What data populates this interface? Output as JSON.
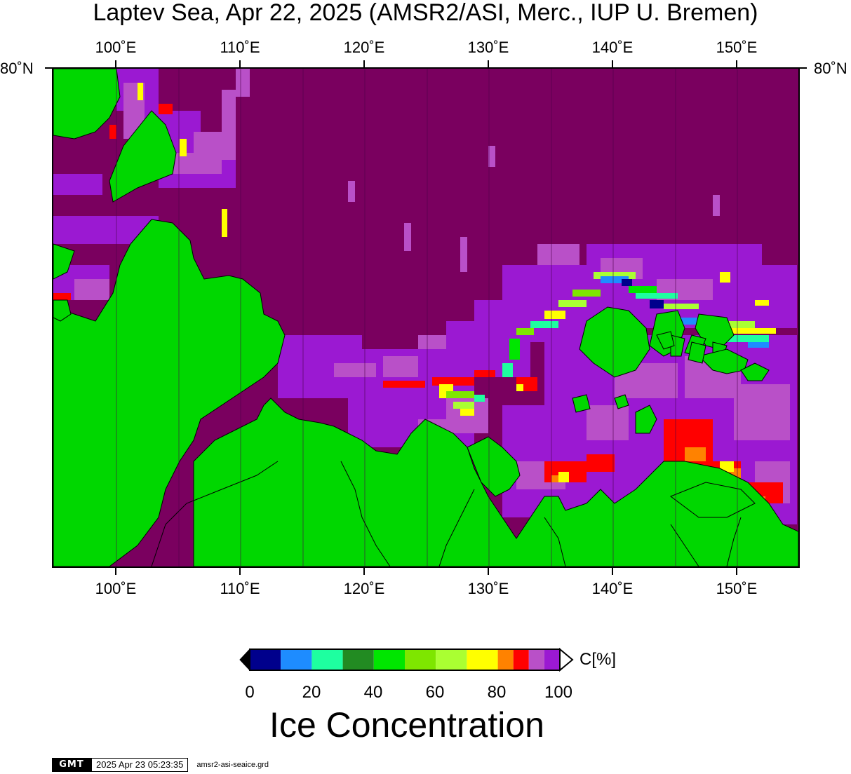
{
  "title": "Laptev Sea, Apr 22, 2025 (AMSR2/ASI, Merc., IUP U. Bremen)",
  "map": {
    "longitude_labels": [
      "100˚E",
      "110˚E",
      "120˚E",
      "130˚E",
      "140˚E",
      "150˚E"
    ],
    "latitude_label_left": "80˚N",
    "latitude_label_right": "80˚N",
    "colors": {
      "ocean_ice": "#7a005f",
      "land": "#00d700",
      "ice_90": "#b950c8",
      "ice_95": "#9b19d2",
      "ice_85": "#ff0000"
    }
  },
  "colorbar": {
    "stops": [
      {
        "from": 0,
        "to": 10,
        "color": "#00008c"
      },
      {
        "from": 10,
        "to": 20,
        "color": "#1e8cff"
      },
      {
        "from": 20,
        "to": 30,
        "color": "#1effa0"
      },
      {
        "from": 30,
        "to": 40,
        "color": "#228b22"
      },
      {
        "from": 40,
        "to": 50,
        "color": "#00e600"
      },
      {
        "from": 50,
        "to": 60,
        "color": "#7ee600"
      },
      {
        "from": 60,
        "to": 70,
        "color": "#aaff32"
      },
      {
        "from": 70,
        "to": 80,
        "color": "#ffff00"
      },
      {
        "from": 80,
        "to": 85,
        "color": "#ff8200"
      },
      {
        "from": 85,
        "to": 90,
        "color": "#ff0000"
      },
      {
        "from": 90,
        "to": 95,
        "color": "#b950c8"
      },
      {
        "from": 95,
        "to": 100,
        "color": "#9b19d2"
      }
    ],
    "tick_labels": [
      "0",
      "20",
      "40",
      "60",
      "80",
      "100"
    ],
    "unit": "C[%]",
    "title": "Ice Concentration"
  },
  "footer": {
    "logo": "GMT",
    "timestamp": "2025 Apr 23 05:23:35",
    "filename": "amsr2-asi-seaice.grd"
  }
}
